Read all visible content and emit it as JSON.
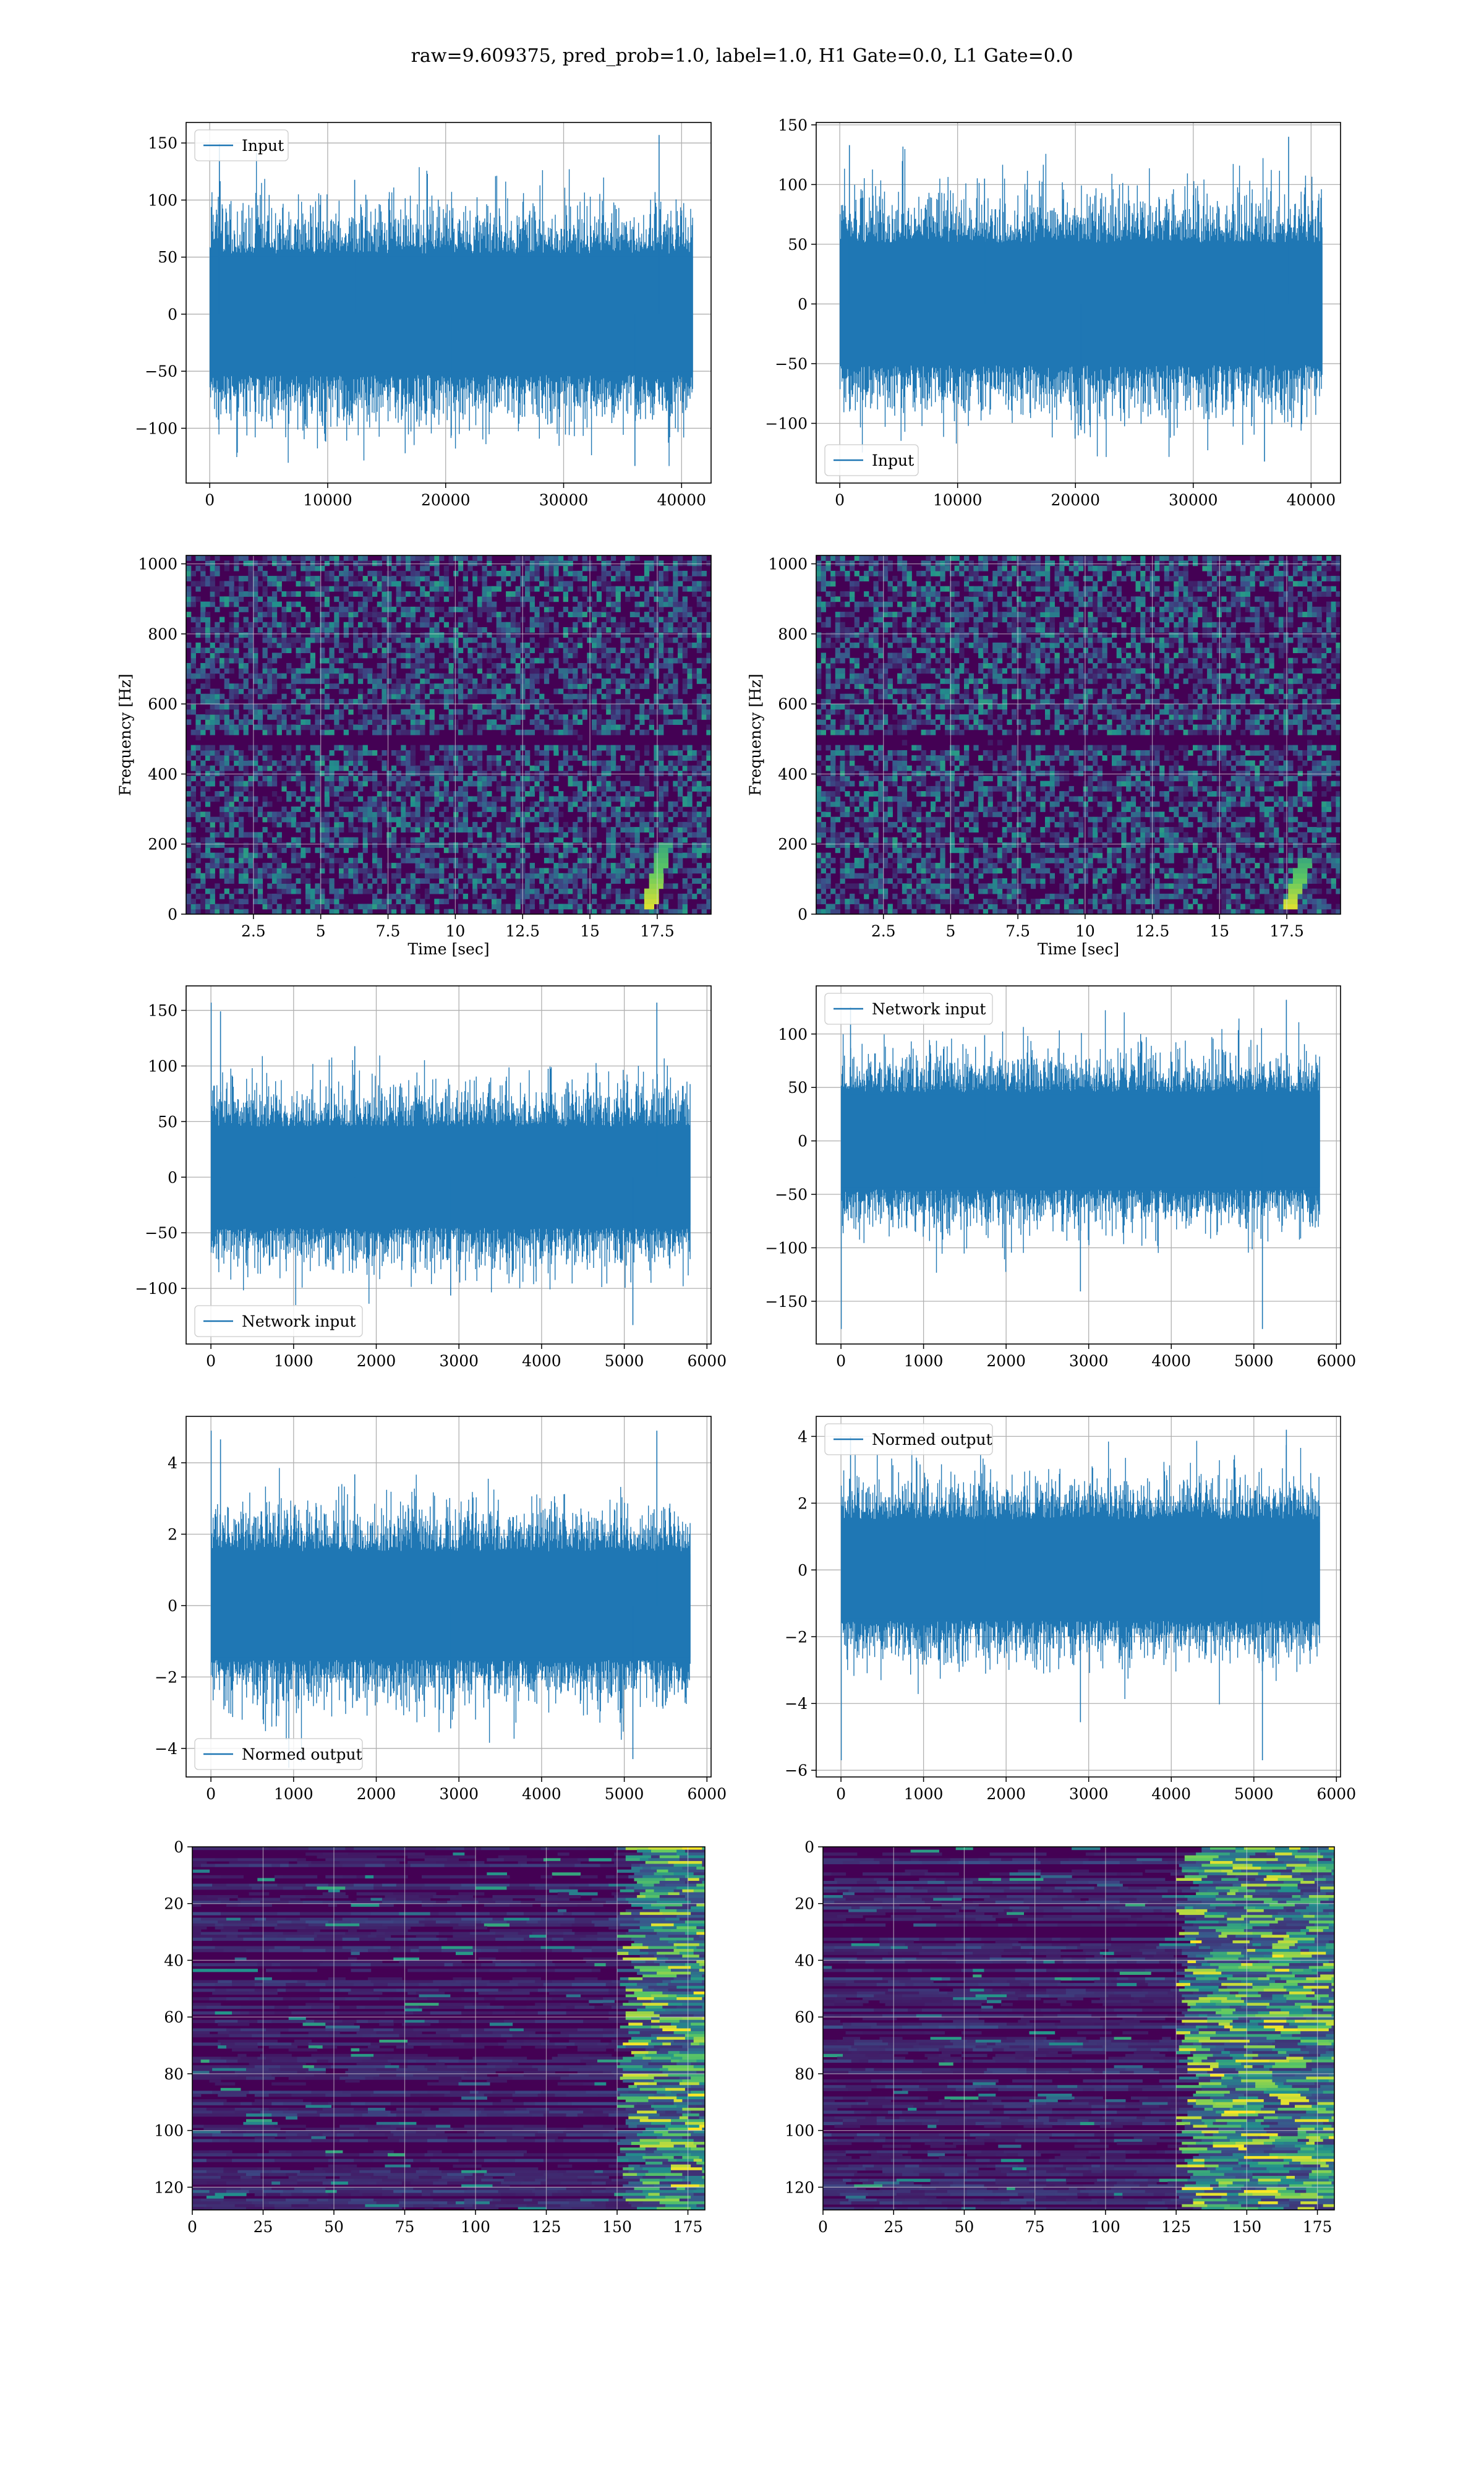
{
  "figure": {
    "suptitle": "raw=9.609375, pred_prob=1.0, label=1.0, H1 Gate=0.0, L1 Gate=0.0"
  },
  "colors": {
    "series": "#1f77b4",
    "grid": "#b0b0b0",
    "viridis_low": "#440154",
    "viridis_mid": "#21918c",
    "viridis_high": "#fde725"
  },
  "chart_data": [
    {
      "id": "input-left",
      "type": "line",
      "legend": {
        "entries": [
          "Input"
        ],
        "position": "upper-left"
      },
      "xlim": [
        -2000,
        42500
      ],
      "ylim": [
        -148,
        168
      ],
      "xticks": [
        0,
        10000,
        20000,
        30000,
        40000
      ],
      "yticks": [
        -100,
        -50,
        0,
        50,
        100,
        150
      ],
      "grid": true,
      "series": [
        {
          "name": "Input",
          "n": 40960,
          "approx_std": 28,
          "max": 157,
          "min": -133
        }
      ]
    },
    {
      "id": "input-right",
      "type": "line",
      "legend": {
        "entries": [
          "Input"
        ],
        "position": "lower-left"
      },
      "xlim": [
        -2000,
        42500
      ],
      "ylim": [
        -150,
        152
      ],
      "xticks": [
        0,
        10000,
        20000,
        30000,
        40000
      ],
      "yticks": [
        -100,
        -50,
        0,
        50,
        100,
        150
      ],
      "grid": true,
      "series": [
        {
          "name": "Input",
          "n": 40960,
          "approx_std": 27,
          "max": 140,
          "min": -132
        }
      ]
    },
    {
      "id": "spectrogram-left",
      "type": "heatmap",
      "xlabel": "Time [sec]",
      "ylabel": "Frequency [Hz]",
      "xlim": [
        0,
        19.5
      ],
      "ylim": [
        0,
        1024
      ],
      "xticks": [
        2.5,
        5.0,
        7.5,
        10.0,
        12.5,
        15.0,
        17.5
      ],
      "yticks": [
        0,
        200,
        400,
        600,
        800,
        1000
      ],
      "grid": true,
      "features": {
        "dark_band_hz": 500,
        "chirp_time_sec": 17.8,
        "chirp_freq_hz": [
          20,
          200
        ]
      }
    },
    {
      "id": "spectrogram-right",
      "type": "heatmap",
      "xlabel": "Time [sec]",
      "ylabel": "Frequency [Hz]",
      "xlim": [
        0,
        19.5
      ],
      "ylim": [
        0,
        1024
      ],
      "xticks": [
        2.5,
        5.0,
        7.5,
        10.0,
        12.5,
        15.0,
        17.5
      ],
      "yticks": [
        0,
        200,
        400,
        600,
        800,
        1000
      ],
      "grid": true,
      "features": {
        "dark_band_hz": 500,
        "chirp_time_sec": 18.2,
        "chirp_freq_hz": [
          20,
          160
        ]
      }
    },
    {
      "id": "network-input-left",
      "type": "line",
      "legend": {
        "entries": [
          "Network input"
        ],
        "position": "lower-left"
      },
      "xlim": [
        -300,
        6050
      ],
      "ylim": [
        -150,
        172
      ],
      "xticks": [
        0,
        1000,
        2000,
        3000,
        4000,
        5000,
        6000
      ],
      "yticks": [
        -100,
        -50,
        0,
        50,
        100,
        150
      ],
      "grid": true,
      "series": [
        {
          "name": "Network input",
          "n": 5800,
          "approx_std": 24,
          "max": 157,
          "min": -133
        }
      ]
    },
    {
      "id": "network-input-right",
      "type": "line",
      "legend": {
        "entries": [
          "Network input"
        ],
        "position": "upper-left"
      },
      "xlim": [
        -300,
        6050
      ],
      "ylim": [
        -190,
        145
      ],
      "xticks": [
        0,
        1000,
        2000,
        3000,
        4000,
        5000,
        6000
      ],
      "yticks": [
        -150,
        -100,
        -50,
        0,
        50,
        100
      ],
      "grid": true,
      "series": [
        {
          "name": "Network input",
          "n": 5800,
          "approx_std": 24,
          "max": 132,
          "min": -176
        }
      ]
    },
    {
      "id": "normed-output-left",
      "type": "line",
      "legend": {
        "entries": [
          "Normed output"
        ],
        "position": "lower-left"
      },
      "xlim": [
        -300,
        6050
      ],
      "ylim": [
        -4.8,
        5.3
      ],
      "xticks": [
        0,
        1000,
        2000,
        3000,
        4000,
        5000,
        6000
      ],
      "yticks": [
        -4,
        -2,
        0,
        2,
        4
      ],
      "grid": true,
      "series": [
        {
          "name": "Normed output",
          "n": 5800,
          "approx_std": 0.8,
          "max": 4.9,
          "min": -4.3
        }
      ]
    },
    {
      "id": "normed-output-right",
      "type": "line",
      "legend": {
        "entries": [
          "Normed output"
        ],
        "position": "upper-left"
      },
      "xlim": [
        -300,
        6050
      ],
      "ylim": [
        -6.2,
        4.6
      ],
      "xticks": [
        0,
        1000,
        2000,
        3000,
        4000,
        5000,
        6000
      ],
      "yticks": [
        -6,
        -4,
        -2,
        0,
        2,
        4
      ],
      "grid": true,
      "series": [
        {
          "name": "Normed output",
          "n": 5800,
          "approx_std": 0.8,
          "max": 4.2,
          "min": -5.7
        }
      ]
    },
    {
      "id": "feature-map-left",
      "type": "heatmap",
      "xlim": [
        0,
        181
      ],
      "ylim": [
        128,
        0
      ],
      "xticks": [
        0,
        25,
        50,
        75,
        100,
        125,
        150,
        175
      ],
      "yticks": [
        0,
        20,
        40,
        60,
        80,
        100,
        120
      ],
      "grid": true,
      "features": {
        "bright_region_x": [
          150,
          181
        ]
      }
    },
    {
      "id": "feature-map-right",
      "type": "heatmap",
      "xlim": [
        0,
        181
      ],
      "ylim": [
        128,
        0
      ],
      "xticks": [
        0,
        25,
        50,
        75,
        100,
        125,
        150,
        175
      ],
      "yticks": [
        0,
        20,
        40,
        60,
        80,
        100,
        120
      ],
      "grid": true,
      "features": {
        "bright_region_x": [
          125,
          181
        ]
      }
    }
  ]
}
